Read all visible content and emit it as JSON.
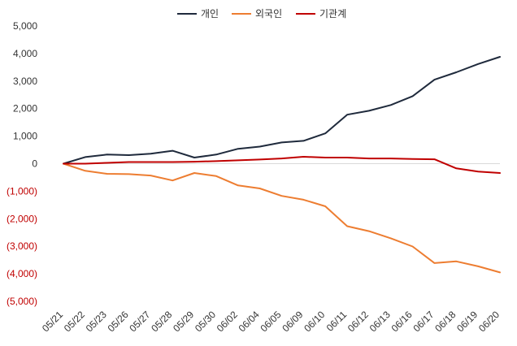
{
  "chart_data": {
    "type": "line",
    "title": "",
    "xlabel": "",
    "ylabel": "",
    "ylim": [
      -5000,
      5000
    ],
    "yticks": [
      5000,
      4000,
      3000,
      2000,
      1000,
      0,
      -1000,
      -2000,
      -3000,
      -4000,
      -5000
    ],
    "ytick_labels": [
      "5,000",
      "4,000",
      "3,000",
      "2,000",
      "1,000",
      "0",
      "(1,000)",
      "(2,000)",
      "(3,000)",
      "(4,000)",
      "(5,000)"
    ],
    "negative_tick_color": "#c00000",
    "positive_tick_color": "#333333",
    "zero_line_color": "#d9d9d9",
    "grid": false,
    "legend_position": "top-center",
    "categories": [
      "05/21",
      "05/22",
      "05/23",
      "05/26",
      "05/27",
      "05/28",
      "05/29",
      "05/30",
      "06/02",
      "06/04",
      "06/05",
      "06/09",
      "06/10",
      "06/11",
      "06/12",
      "06/13",
      "06/16",
      "06/17",
      "06/18",
      "06/19",
      "06/20"
    ],
    "series": [
      {
        "name": "개인",
        "color": "#1f2a3c",
        "values": [
          0,
          240,
          330,
          310,
          360,
          470,
          220,
          330,
          540,
          620,
          770,
          830,
          1100,
          1780,
          1920,
          2130,
          2450,
          3050,
          3320,
          3620,
          3880
        ]
      },
      {
        "name": "외국인",
        "color": "#ed7d31",
        "values": [
          0,
          -260,
          -370,
          -380,
          -430,
          -610,
          -340,
          -450,
          -790,
          -900,
          -1170,
          -1310,
          -1550,
          -2270,
          -2450,
          -2710,
          -3010,
          -3610,
          -3550,
          -3730,
          -3950
        ]
      },
      {
        "name": "기관계",
        "color": "#c00000",
        "values": [
          0,
          0,
          30,
          60,
          60,
          60,
          70,
          90,
          120,
          150,
          190,
          250,
          220,
          220,
          190,
          190,
          170,
          160,
          -170,
          -290,
          -340
        ]
      }
    ]
  }
}
